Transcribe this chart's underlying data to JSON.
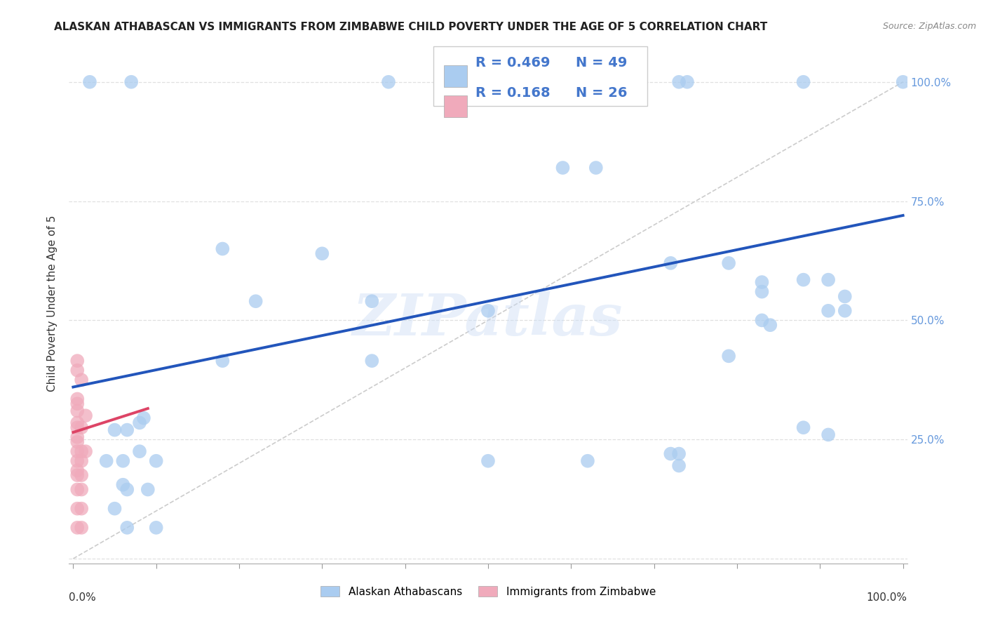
{
  "title": "ALASKAN ATHABASCAN VS IMMIGRANTS FROM ZIMBABWE CHILD POVERTY UNDER THE AGE OF 5 CORRELATION CHART",
  "source": "Source: ZipAtlas.com",
  "ylabel": "Child Poverty Under the Age of 5",
  "legend_label1": "Alaskan Athabascans",
  "legend_label2": "Immigrants from Zimbabwe",
  "R1": "0.469",
  "N1": "49",
  "R2": "0.168",
  "N2": "26",
  "color1": "#aaccf0",
  "color2": "#f0aabb",
  "line1_color": "#2255bb",
  "line2_color": "#dd4466",
  "watermark": "ZIPatlas",
  "blue_points": [
    [
      0.02,
      1.0
    ],
    [
      0.07,
      1.0
    ],
    [
      0.38,
      1.0
    ],
    [
      0.73,
      1.0
    ],
    [
      0.74,
      1.0
    ],
    [
      0.88,
      1.0
    ],
    [
      1.0,
      1.0
    ],
    [
      0.59,
      0.82
    ],
    [
      0.63,
      0.82
    ],
    [
      0.18,
      0.65
    ],
    [
      0.3,
      0.64
    ],
    [
      0.22,
      0.54
    ],
    [
      0.36,
      0.54
    ],
    [
      0.5,
      0.52
    ],
    [
      0.72,
      0.62
    ],
    [
      0.79,
      0.62
    ],
    [
      0.83,
      0.58
    ],
    [
      0.83,
      0.56
    ],
    [
      0.88,
      0.585
    ],
    [
      0.91,
      0.585
    ],
    [
      0.93,
      0.55
    ],
    [
      0.83,
      0.5
    ],
    [
      0.84,
      0.49
    ],
    [
      0.91,
      0.52
    ],
    [
      0.93,
      0.52
    ],
    [
      0.18,
      0.415
    ],
    [
      0.36,
      0.415
    ],
    [
      0.79,
      0.425
    ],
    [
      0.88,
      0.275
    ],
    [
      0.62,
      0.205
    ],
    [
      0.72,
      0.22
    ],
    [
      0.73,
      0.22
    ],
    [
      0.91,
      0.26
    ],
    [
      0.08,
      0.285
    ],
    [
      0.085,
      0.295
    ],
    [
      0.05,
      0.27
    ],
    [
      0.065,
      0.27
    ],
    [
      0.08,
      0.225
    ],
    [
      0.04,
      0.205
    ],
    [
      0.06,
      0.205
    ],
    [
      0.1,
      0.205
    ],
    [
      0.5,
      0.205
    ],
    [
      0.73,
      0.195
    ],
    [
      0.06,
      0.155
    ],
    [
      0.065,
      0.145
    ],
    [
      0.09,
      0.145
    ],
    [
      0.05,
      0.105
    ],
    [
      0.065,
      0.065
    ],
    [
      0.1,
      0.065
    ]
  ],
  "pink_points": [
    [
      0.005,
      0.415
    ],
    [
      0.005,
      0.395
    ],
    [
      0.01,
      0.375
    ],
    [
      0.005,
      0.335
    ],
    [
      0.005,
      0.325
    ],
    [
      0.005,
      0.31
    ],
    [
      0.015,
      0.3
    ],
    [
      0.005,
      0.285
    ],
    [
      0.005,
      0.275
    ],
    [
      0.01,
      0.275
    ],
    [
      0.005,
      0.255
    ],
    [
      0.005,
      0.245
    ],
    [
      0.005,
      0.225
    ],
    [
      0.01,
      0.225
    ],
    [
      0.015,
      0.225
    ],
    [
      0.005,
      0.205
    ],
    [
      0.01,
      0.205
    ],
    [
      0.005,
      0.185
    ],
    [
      0.005,
      0.175
    ],
    [
      0.01,
      0.175
    ],
    [
      0.005,
      0.145
    ],
    [
      0.01,
      0.145
    ],
    [
      0.005,
      0.105
    ],
    [
      0.01,
      0.105
    ],
    [
      0.005,
      0.065
    ],
    [
      0.01,
      0.065
    ]
  ],
  "blue_line_x": [
    0.0,
    1.0
  ],
  "blue_line_y": [
    0.36,
    0.72
  ],
  "pink_line_x": [
    0.0,
    0.09
  ],
  "pink_line_y": [
    0.265,
    0.315
  ],
  "xlim": [
    -0.005,
    1.005
  ],
  "ylim": [
    -0.01,
    1.08
  ],
  "x_ticks": [
    0.0,
    0.1,
    0.2,
    0.3,
    0.4,
    0.5,
    0.6,
    0.7,
    0.8,
    0.9,
    1.0
  ],
  "y_ticks": [
    0.0,
    0.25,
    0.5,
    0.75,
    1.0
  ],
  "right_y_labels": [
    "",
    "25.0%",
    "50.0%",
    "75.0%",
    "100.0%"
  ],
  "label_color": "#6699dd"
}
